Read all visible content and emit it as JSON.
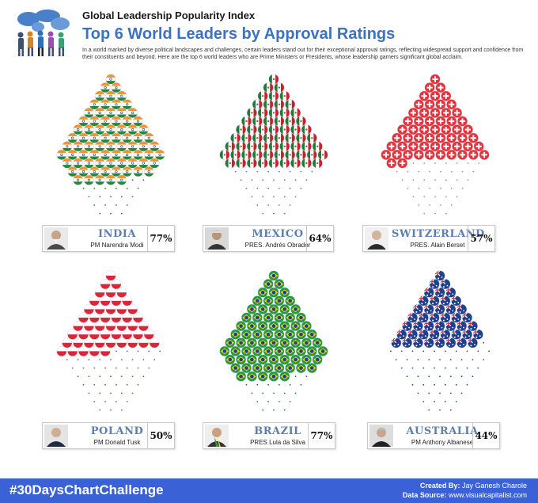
{
  "header": {
    "kicker": "Global Leadership Popularity Index",
    "title": "Top 6 World Leaders by Approval Ratings",
    "intro": "In a world marked by diverse political landscapes and challenges, certain leaders stand out for their exceptional approval ratings, reflecting widespread support and confidence from their constituents and beyond. Here are the top 6 world leaders who are Prime Ministers or Presidents, whose leadership garners significant global acclaim."
  },
  "chart_data": {
    "type": "waffle",
    "unit": "%",
    "max": 100,
    "items": [
      {
        "country": "INDIA",
        "leader": "PM Narendra Modi",
        "value": 77,
        "label": "77%",
        "flag": "india",
        "dot_color": "#2e7d2e"
      },
      {
        "country": "MEXICO",
        "leader": "PRES. Andrés Obrador",
        "value": 64,
        "label": "64%",
        "flag": "mexico",
        "dot_color": "#777777"
      },
      {
        "country": "SWITZERLAND",
        "leader": "PRES. Alain Berset",
        "value": 57,
        "label": "57%",
        "flag": "switzerland",
        "dot_color": "#999999"
      },
      {
        "country": "POLAND",
        "leader": "PM Donald Tusk",
        "value": 50,
        "label": "50%",
        "flag": "poland",
        "dot_color": "#5a7a3a"
      },
      {
        "country": "BRAZIL",
        "leader": "PRES Lula da Silva",
        "value": 77,
        "label": "77%",
        "flag": "brazil",
        "dot_color": "#1f7a3a"
      },
      {
        "country": "AUSTRALIA",
        "leader": "PM Anthony Albanese",
        "value": 44,
        "label": "44%",
        "flag": "australia",
        "dot_color": "#1f4f8a"
      }
    ]
  },
  "colors": {
    "title": "#3a72c4",
    "footer": "#3a62d6",
    "country_label": "#5b7fae"
  },
  "icons": {
    "logo": "world-map-people-icon",
    "leader_photo": "portrait-icon"
  },
  "footer": {
    "hashtag": "#30DaysChartChallenge",
    "created_label": "Created By:",
    "created_value": "Jay Ganesh Charole",
    "source_label": "Data Source:",
    "source_value": "www.visualcapitalist.com"
  }
}
